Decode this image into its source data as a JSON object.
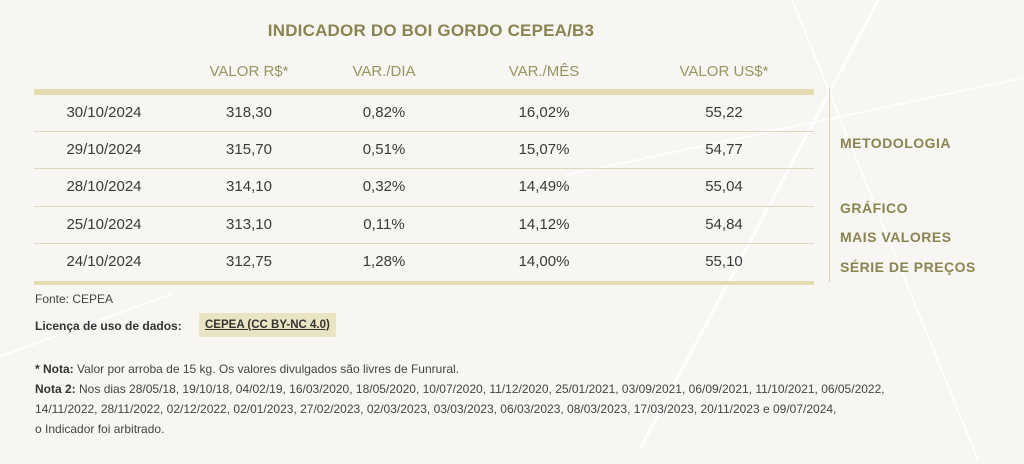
{
  "title": "INDICADOR DO BOI GORDO CEPEA/B3",
  "columns": [
    "VALOR R$*",
    "VAR./DIA",
    "VAR./MÊS",
    "VALOR US$*"
  ],
  "rows": [
    {
      "date": "30/10/2024",
      "valor_rs": "318,30",
      "var_dia": "0,82%",
      "var_mes": "16,02%",
      "valor_us": "55,22"
    },
    {
      "date": "29/10/2024",
      "valor_rs": "315,70",
      "var_dia": "0,51%",
      "var_mes": "15,07%",
      "valor_us": "54,77"
    },
    {
      "date": "28/10/2024",
      "valor_rs": "314,10",
      "var_dia": "0,32%",
      "var_mes": "14,49%",
      "valor_us": "55,04"
    },
    {
      "date": "25/10/2024",
      "valor_rs": "313,10",
      "var_dia": "0,11%",
      "var_mes": "14,12%",
      "valor_us": "54,84"
    },
    {
      "date": "24/10/2024",
      "valor_rs": "312,75",
      "var_dia": "1,28%",
      "var_mes": "14,00%",
      "valor_us": "55,10"
    }
  ],
  "side_links": {
    "metodologia": "METODOLOGIA",
    "grafico": "GRÁFICO",
    "mais_valores": "MAIS VALORES",
    "serie_precos": "SÉRIE DE PREÇOS"
  },
  "source": "Fonte: CEPEA",
  "license": {
    "label": "Licença de uso de dados:",
    "link": "CEPEA (CC BY-NC 4.0)"
  },
  "notes": {
    "note1_label": "* Nota:",
    "note1_text": "Valor por arroba de 15 kg. Os valores divulgados são livres de Funrural.",
    "note2_label": "Nota 2:",
    "note2_line1": "Nos dias 28/05/18, 19/10/18, 04/02/19, 16/03/2020, 18/05/2020, 10/07/2020, 11/12/2020, 25/01/2021, 03/09/2021, 06/09/2021, 11/10/2021, 06/05/2022,",
    "note2_line2": "14/11/2022, 28/11/2022, 02/12/2022, 02/01/2023, 27/02/2023, 02/03/2023, 03/03/2023, 06/03/2023, 08/03/2023, 17/03/2023, 20/11/2023 e 09/07/2024,",
    "note2_line3": "o Indicador foi arbitrado."
  }
}
